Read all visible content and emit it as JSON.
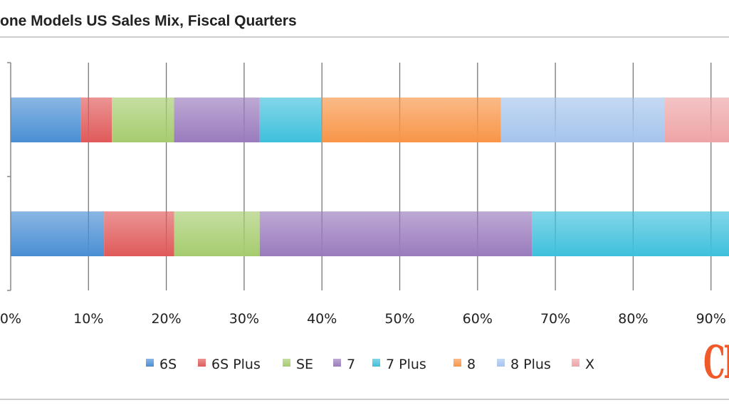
{
  "title": "one Models US Sales Mix, Fiscal Quarters",
  "logo_text": "CI",
  "chart_data": {
    "type": "bar",
    "orientation": "horizontal",
    "stacked": "percent",
    "title": "one Models US Sales Mix, Fiscal Quarters",
    "xlabel": "",
    "ylabel": "",
    "xlim": [
      0,
      100
    ],
    "x_ticks": [
      "0%",
      "10%",
      "20%",
      "30%",
      "40%",
      "50%",
      "60%",
      "70%",
      "80%",
      "90%"
    ],
    "grid": true,
    "legend_position": "bottom",
    "categories": [
      "top bar",
      "bottom bar"
    ],
    "series": [
      {
        "name": "6S",
        "color": "#4a8fd4",
        "values": [
          9,
          12
        ]
      },
      {
        "name": "6S Plus",
        "color": "#e05a5a",
        "values": [
          4,
          9
        ]
      },
      {
        "name": "SE",
        "color": "#a6cc6e",
        "values": [
          8,
          11
        ]
      },
      {
        "name": "7",
        "color": "#9a7bbd",
        "values": [
          11,
          35
        ]
      },
      {
        "name": "7 Plus",
        "color": "#3fc0dc",
        "values": [
          8,
          33
        ]
      },
      {
        "name": "8",
        "color": "#f89548",
        "values": [
          23,
          0
        ]
      },
      {
        "name": "8 Plus",
        "color": "#a5c4ec",
        "values": [
          21,
          0
        ]
      },
      {
        "name": "X",
        "color": "#eea4a6",
        "values": [
          16,
          0
        ]
      }
    ]
  }
}
